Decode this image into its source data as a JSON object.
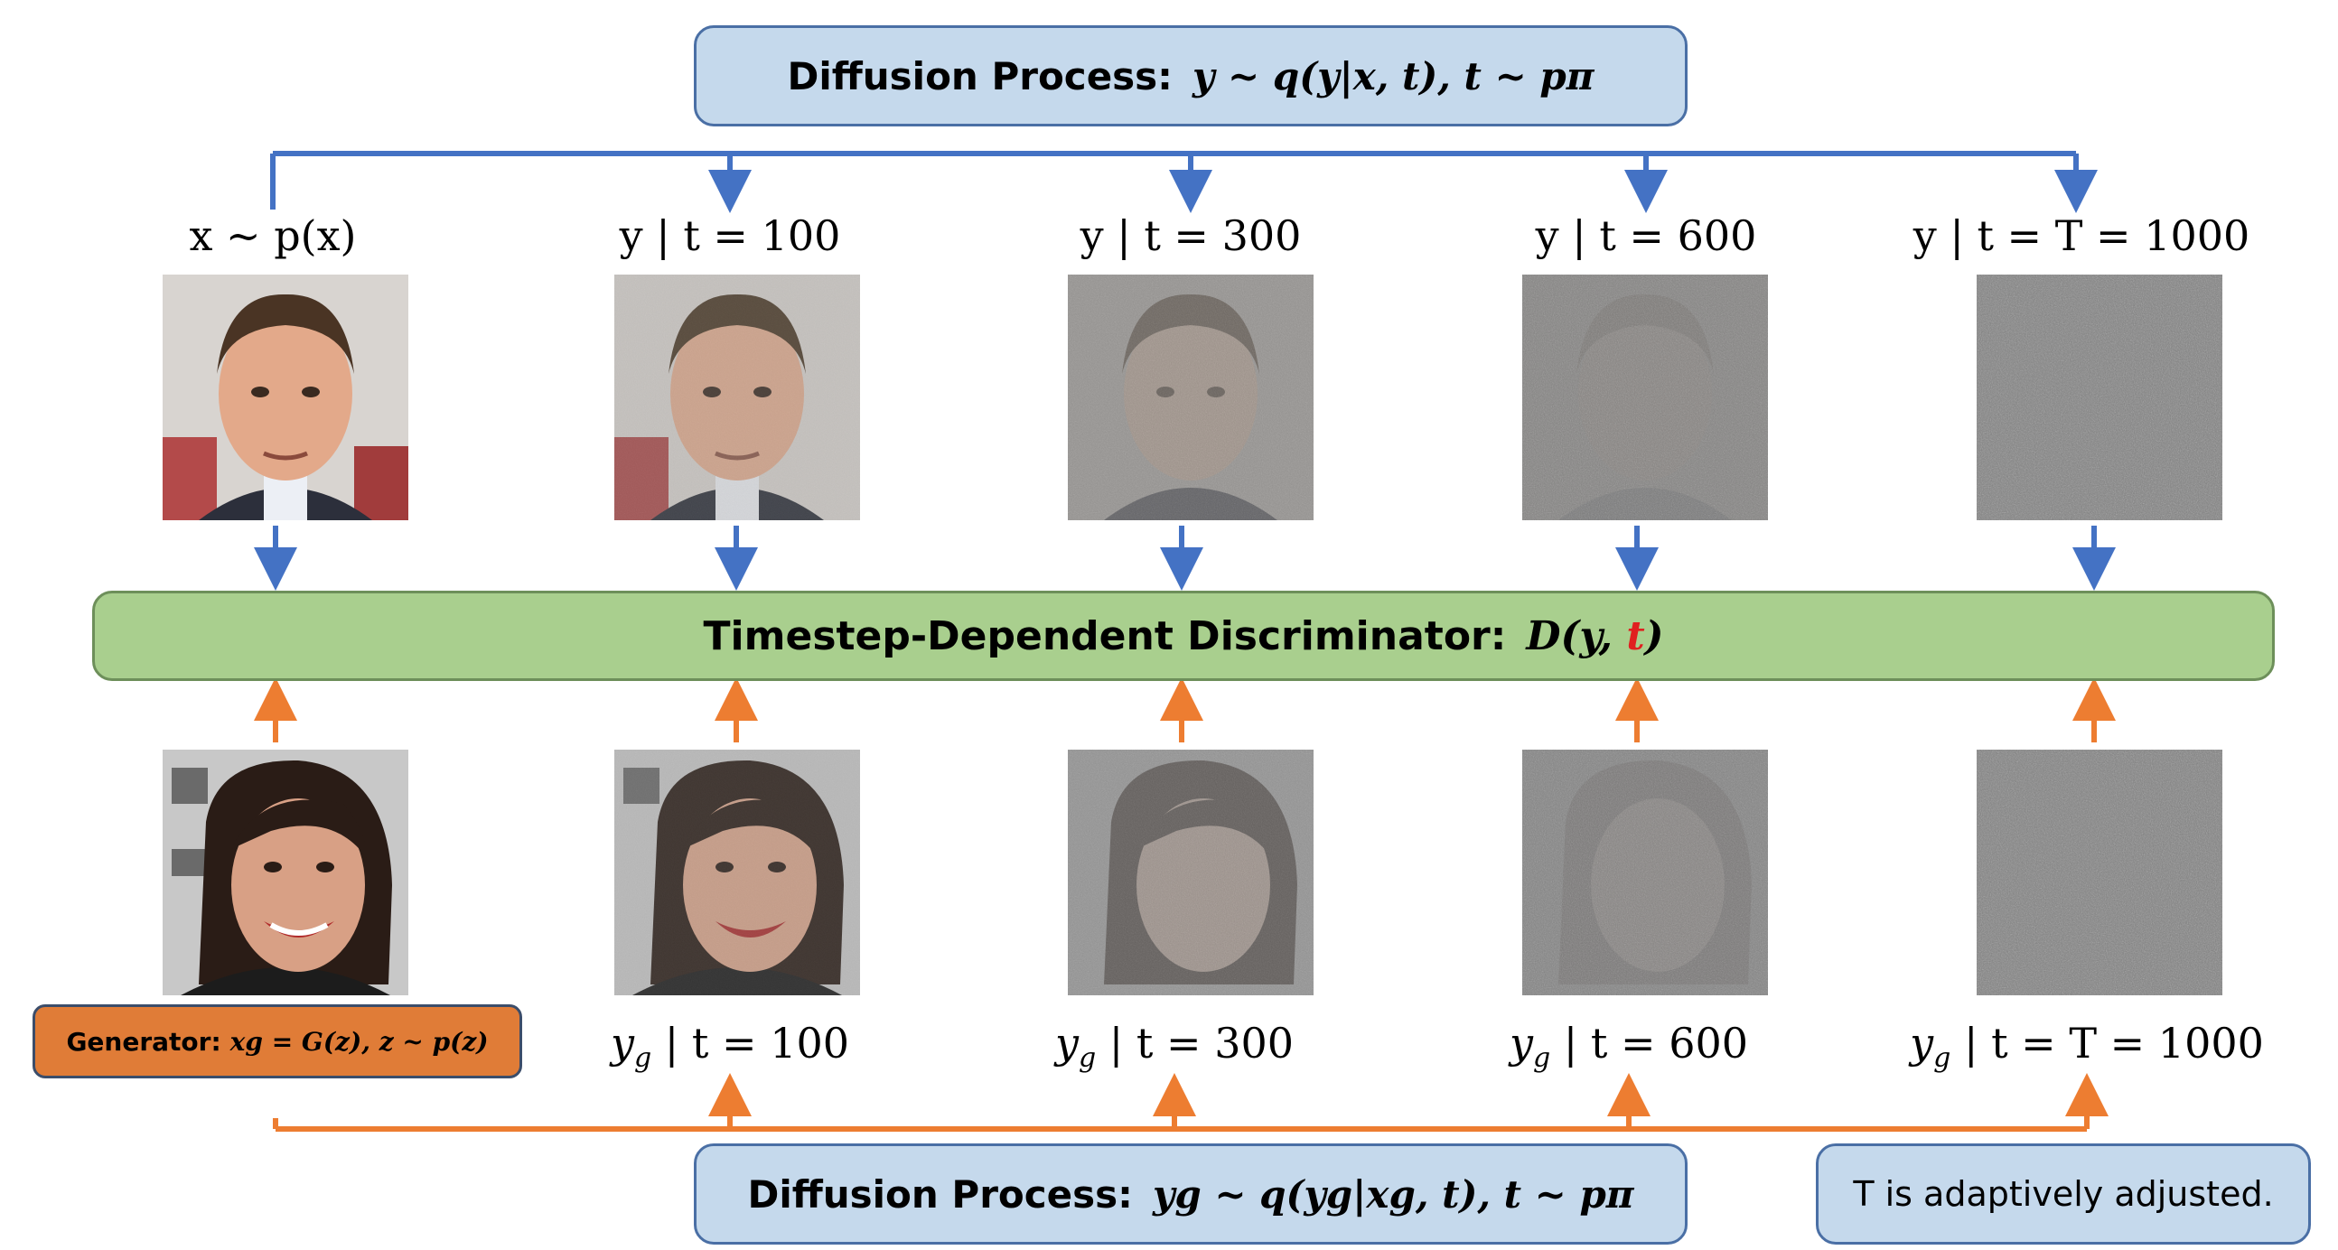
{
  "top_process": {
    "label": "Diffusion Process:",
    "formula": "y ~ q(y|x, t), t ~ pπ"
  },
  "real_labels": [
    "x ~ p(x)",
    "y | t = 100",
    "y | t = 300",
    "y | t = 600",
    "y | t = T = 1000"
  ],
  "discriminator": {
    "label": "Timestep-Dependent Discriminator:",
    "formula_prefix": "D(y, ",
    "formula_t": "t",
    "formula_suffix": ")"
  },
  "generator": {
    "label": "Generator:",
    "formula": "xg = G(z), z ~ p(z)"
  },
  "fake_labels": [
    {
      "var": "y",
      "sub": "g",
      "rest": " | t = 100"
    },
    {
      "var": "y",
      "sub": "g",
      "rest": " | t = 300"
    },
    {
      "var": "y",
      "sub": "g",
      "rest": " | t = 600"
    },
    {
      "var": "y",
      "sub": "g",
      "rest": " | t = T = 1000"
    }
  ],
  "bottom_process": {
    "label": "Diffusion Process:",
    "formula": "yg ~ q(yg|xg, t), t ~ pπ"
  },
  "note": "T is adaptively adjusted.",
  "images": {
    "real": [
      "photo of a man, clean",
      "photo of a man, t=100",
      "photo of a man, t=300",
      "photo of a man, t=600",
      "pure noise"
    ],
    "fake": [
      "generated photo of a woman, clean",
      "generated photo of a woman, t=100",
      "generated photo of a woman, t=300",
      "generated photo of a woman, t=600",
      "pure noise"
    ]
  },
  "colors": {
    "blue_arrow": "#4472c4",
    "orange_arrow": "#ed7d31",
    "blue_box_fill": "#c5d9ec",
    "green_box_fill": "#a9cf8e",
    "orange_box_fill": "#e07c37",
    "red_t": "#e02020"
  }
}
